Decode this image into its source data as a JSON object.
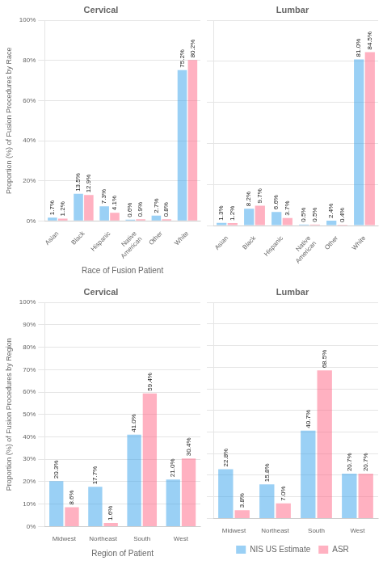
{
  "chart_data": [
    {
      "type": "bar",
      "title": "Cervical",
      "categories": [
        "Asian",
        "Black",
        "Hispanic",
        "Native\nAmerican",
        "Other",
        "White"
      ],
      "series": [
        {
          "name": "NIS US Estimate",
          "values": [
            1.7,
            13.5,
            7.3,
            0.6,
            2.7,
            75.2
          ],
          "value_labels": [
            "1.7%",
            "13.5%",
            "7.3%",
            "0.6%",
            "2.7%",
            "75.2%"
          ]
        },
        {
          "name": "ASR",
          "values": [
            1.2,
            12.9,
            4.1,
            0.9,
            0.8,
            80.2
          ],
          "value_labels": [
            "1.2%",
            "12.9%",
            "4.1%",
            "0.9%",
            "0.8%",
            "80.2%"
          ]
        }
      ],
      "y_label": "Proportion (%) of Fusion Procedures by Race",
      "x_label": "Race of Fusion Patient",
      "ylim": [
        0,
        100
      ],
      "yticks": [
        {
          "value": 0,
          "label": "0%"
        },
        {
          "value": 20,
          "label": "20%"
        },
        {
          "value": 40,
          "label": "40%"
        },
        {
          "value": 60,
          "label": "60%"
        },
        {
          "value": 80,
          "label": "80%"
        },
        {
          "value": 100,
          "label": "100%"
        }
      ],
      "grid": true,
      "data_labels": true
    },
    {
      "type": "bar",
      "title": "Lumbar",
      "categories": [
        "Asian",
        "Black",
        "Hispanic",
        "Native\nAmerican",
        "Other",
        "White"
      ],
      "series": [
        {
          "name": "NIS US Estimate",
          "values": [
            1.3,
            8.2,
            6.6,
            0.5,
            2.4,
            81.0
          ],
          "value_labels": [
            "1.3%",
            "8.2%",
            "6.6%",
            "0.5%",
            "2.4%",
            "81.0%"
          ]
        },
        {
          "name": "ASR",
          "values": [
            1.2,
            9.7,
            3.7,
            0.5,
            0.4,
            84.5
          ],
          "value_labels": [
            "1.2%",
            "9.7%",
            "3.7%",
            "0.5%",
            "0.4%",
            "84.5%"
          ]
        }
      ],
      "ylim": [
        0,
        100
      ],
      "yticks": [
        0,
        20,
        40,
        60,
        80,
        100
      ],
      "grid": true,
      "data_labels": true,
      "tick_labels": "x"
    },
    {
      "type": "bar",
      "title": "Cervical",
      "categories": [
        "Midwest",
        "Northeast",
        "South",
        "West"
      ],
      "series": [
        {
          "name": "NIS US Estimate",
          "values": [
            20.3,
            17.7,
            41.0,
            21.0
          ],
          "value_labels": [
            "20.3%",
            "17.7%",
            "41.0%",
            "21.0%"
          ]
        },
        {
          "name": "ASR",
          "values": [
            8.6,
            1.6,
            59.4,
            30.4
          ],
          "value_labels": [
            "8.6%",
            "1.6%",
            "59.4%",
            "30.4%"
          ]
        }
      ],
      "y_label": "Proportion (%) of Fusion Procedures by Region",
      "x_label": "Region of Patient",
      "ylim": [
        0,
        100
      ],
      "yticks": [
        {
          "value": 0,
          "label": "0%"
        },
        {
          "value": 10,
          "label": "10%"
        },
        {
          "value": 20,
          "label": "20%"
        },
        {
          "value": 30,
          "label": "30%"
        },
        {
          "value": 40,
          "label": "40%"
        },
        {
          "value": 50,
          "label": "50%"
        },
        {
          "value": 60,
          "label": "60%"
        },
        {
          "value": 70,
          "label": "70%"
        },
        {
          "value": 80,
          "label": "80%"
        },
        {
          "value": 90,
          "label": "90%"
        },
        {
          "value": 100,
          "label": "100%"
        }
      ],
      "grid": true,
      "data_labels": true
    },
    {
      "type": "bar",
      "title": "Lumbar",
      "categories": [
        "Midwest",
        "Northeast",
        "South",
        "West"
      ],
      "series": [
        {
          "name": "NIS US Estimate",
          "values": [
            22.8,
            15.8,
            40.7,
            20.7
          ],
          "value_labels": [
            "22.8%",
            "15.8%",
            "40.7%",
            "20.7%"
          ]
        },
        {
          "name": "ASR",
          "values": [
            3.8,
            7.0,
            68.5,
            20.7
          ],
          "value_labels": [
            "3.8%",
            "7.0%",
            "68.5%",
            "20.7%"
          ]
        }
      ],
      "ylim": [
        0,
        100
      ],
      "yticks": [
        0,
        10,
        20,
        30,
        40,
        50,
        60,
        70,
        80,
        90,
        100
      ],
      "grid": true,
      "data_labels": true,
      "tick_labels": "x",
      "legend": "bottom"
    }
  ]
}
